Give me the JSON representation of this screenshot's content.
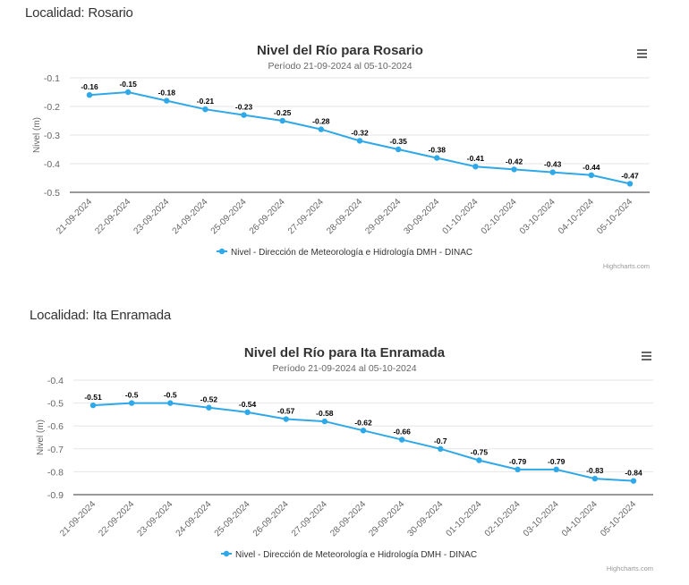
{
  "sections": [
    {
      "heading": "Localidad: Rosario"
    },
    {
      "heading": "Localidad: Ita Enramada"
    }
  ],
  "colors": {
    "series": "#2fa8e8",
    "text": "#333333",
    "axis": "#666666",
    "grid": "#e6e6e6"
  },
  "icons": {
    "menu": "hamburger-menu-icon",
    "legend": "legend-marker-icon"
  },
  "credits": "Highcharts.com",
  "chart_data": [
    {
      "type": "line",
      "title": "Nivel del Río para Rosario",
      "subtitle": "Período 21-09-2024 al 05-10-2024",
      "ylabel": "Nivel (m)",
      "ylim": [
        -0.5,
        -0.1
      ],
      "yticks": [
        -0.1,
        -0.2,
        -0.3,
        -0.4,
        -0.5
      ],
      "ytick_labels": [
        "-0.1",
        "-0.2",
        "-0.3",
        "-0.4",
        "-0.5"
      ],
      "grid": true,
      "legend_position": "bottom-center",
      "categories": [
        "21-09-2024",
        "22-09-2024",
        "23-09-2024",
        "24-09-2024",
        "25-09-2024",
        "26-09-2024",
        "27-09-2024",
        "28-09-2024",
        "29-09-2024",
        "30-09-2024",
        "01-10-2024",
        "02-10-2024",
        "03-10-2024",
        "04-10-2024",
        "05-10-2024"
      ],
      "series": [
        {
          "name": "Nivel - Dirección de Meteorología e Hidrología DMH - DINAC",
          "values": [
            -0.16,
            -0.15,
            -0.18,
            -0.21,
            -0.23,
            -0.25,
            -0.28,
            -0.32,
            -0.35,
            -0.38,
            -0.41,
            -0.42,
            -0.43,
            -0.44,
            -0.47
          ],
          "labels": [
            "-0.16",
            "-0.15",
            "-0.18",
            "-0.21",
            "-0.23",
            "-0.25",
            "-0.28",
            "-0.32",
            "-0.35",
            "-0.38",
            "-0.41",
            "-0.42",
            "-0.43",
            "-0.44",
            "-0.47"
          ]
        }
      ]
    },
    {
      "type": "line",
      "title": "Nivel del Río para Ita Enramada",
      "subtitle": "Período 21-09-2024 al 05-10-2024",
      "ylabel": "Nivel (m)",
      "ylim": [
        -0.9,
        -0.4
      ],
      "yticks": [
        -0.4,
        -0.5,
        -0.6,
        -0.7,
        -0.8,
        -0.9
      ],
      "ytick_labels": [
        "-0.4",
        "-0.5",
        "-0.6",
        "-0.7",
        "-0.8",
        "-0.9"
      ],
      "grid": true,
      "legend_position": "bottom-center",
      "categories": [
        "21-09-2024",
        "22-09-2024",
        "23-09-2024",
        "24-09-2024",
        "25-09-2024",
        "26-09-2024",
        "27-09-2024",
        "28-09-2024",
        "29-09-2024",
        "30-09-2024",
        "01-10-2024",
        "02-10-2024",
        "03-10-2024",
        "04-10-2024",
        "05-10-2024"
      ],
      "series": [
        {
          "name": "Nivel - Dirección de Meteorología e Hidrología DMH - DINAC",
          "values": [
            -0.51,
            -0.5,
            -0.5,
            -0.52,
            -0.54,
            -0.57,
            -0.58,
            -0.62,
            -0.66,
            -0.7,
            -0.75,
            -0.79,
            -0.79,
            -0.83,
            -0.84
          ],
          "labels": [
            "-0.51",
            "-0.5",
            "-0.5",
            "-0.52",
            "-0.54",
            "-0.57",
            "-0.58",
            "-0.62",
            "-0.66",
            "-0.7",
            "-0.75",
            "-0.79",
            "-0.79",
            "-0.83",
            "-0.84"
          ]
        }
      ]
    }
  ]
}
